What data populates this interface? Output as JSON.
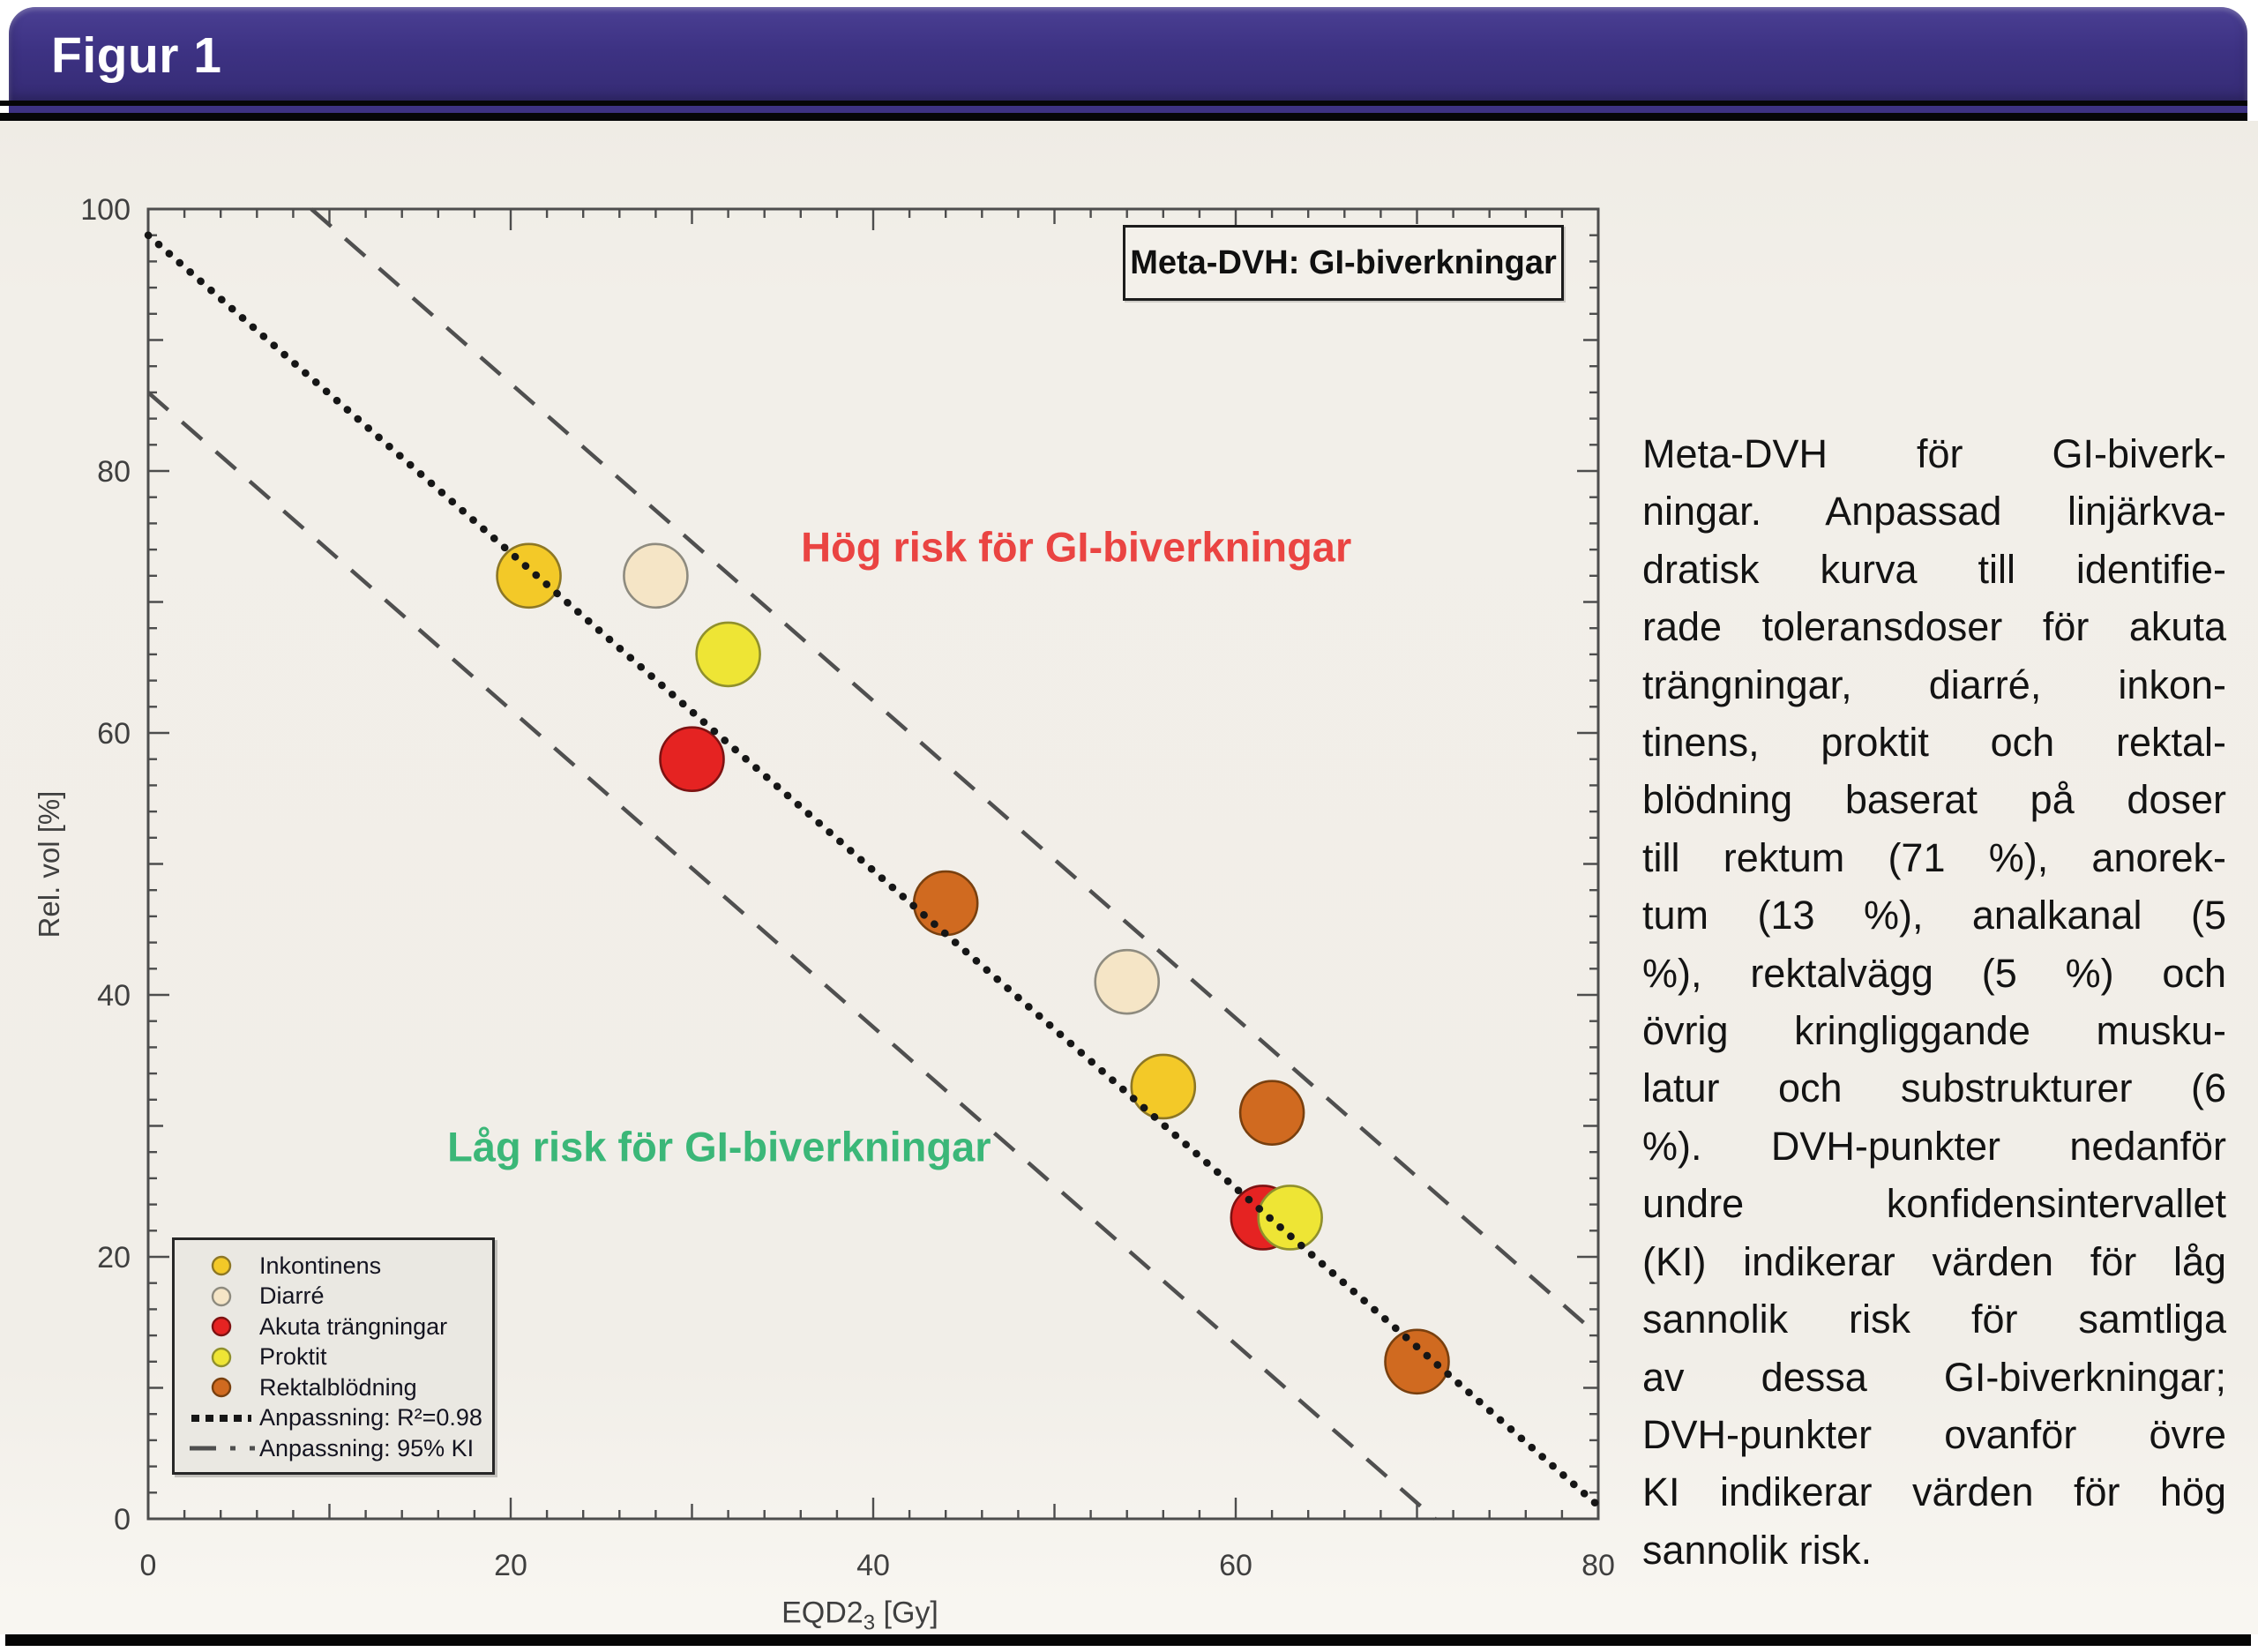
{
  "header": {
    "title": "Figur 1"
  },
  "chart": {
    "y_axis_label": "Rel. vol [%]",
    "x_axis_label": {
      "main": "EQD2",
      "sub": "3",
      "unit": " [Gy]"
    },
    "legend": {
      "items": [
        {
          "label": "Inkontinens",
          "marker": "circle",
          "color": "#f3c928",
          "edge": "#8d7725"
        },
        {
          "label": "Diarré",
          "marker": "circle",
          "color": "#f5e5c6",
          "edge": "#8e8b7f"
        },
        {
          "label": "Akuta trängningar",
          "marker": "circle",
          "color": "#e52322",
          "edge": "#7e1212"
        },
        {
          "label": "Proktit",
          "marker": "circle",
          "color": "#eee535",
          "edge": "#90902c"
        },
        {
          "label": "Rektalblödning",
          "marker": "circle",
          "color": "#d06a20",
          "edge": "#79400f"
        },
        {
          "label": "Anpassning: R²=0.98",
          "marker": "dotted",
          "color": "#161616"
        },
        {
          "label": "Anpassning: 95% KI",
          "marker": "dashed",
          "color": "#4f4f4f"
        }
      ]
    }
  },
  "chart_data": {
    "type": "scatter",
    "title": "Meta-DVH: GI-biverkningar",
    "xlabel": "EQD2₃ [Gy]",
    "ylabel": "Rel. vol [%]",
    "xlim": [
      0,
      80
    ],
    "ylim": [
      0,
      100
    ],
    "x_major_ticks": [
      0,
      20,
      40,
      60,
      80
    ],
    "y_major_ticks": [
      0,
      20,
      40,
      60,
      80,
      100
    ],
    "minor_tick_step": 2,
    "grid": false,
    "legend_position": "lower-left",
    "series": [
      {
        "name": "Inkontinens",
        "color": "#f3c928",
        "edge": "#8d7725",
        "points": [
          [
            21,
            72
          ],
          [
            56,
            33
          ]
        ]
      },
      {
        "name": "Diarré",
        "color": "#f5e5c6",
        "edge": "#8e8b7f",
        "points": [
          [
            28,
            72
          ],
          [
            54,
            41
          ]
        ]
      },
      {
        "name": "Akuta trängningar",
        "color": "#e52322",
        "edge": "#7e1212",
        "points": [
          [
            30,
            58
          ],
          [
            61.5,
            23
          ]
        ]
      },
      {
        "name": "Proktit",
        "color": "#eee535",
        "edge": "#90902c",
        "points": [
          [
            32,
            66
          ],
          [
            63,
            23
          ]
        ]
      },
      {
        "name": "Rektalblödning",
        "color": "#d06a20",
        "edge": "#79400f",
        "points": [
          [
            44,
            47
          ],
          [
            62,
            31
          ],
          [
            70,
            12
          ]
        ]
      }
    ],
    "fit_line": {
      "label": "Anpassning: R²=0.98",
      "style": "dotted",
      "x": [
        0,
        80
      ],
      "y": [
        98,
        1
      ]
    },
    "ci_label": "Anpassning: 95% KI",
    "ci_upper": {
      "style": "dashed",
      "x": [
        9,
        80
      ],
      "y": [
        100,
        14
      ]
    },
    "ci_lower": {
      "style": "dashed",
      "x": [
        0,
        71
      ],
      "y": [
        86,
        0
      ]
    },
    "annotations": [
      {
        "text": "Hög risk för GI-biverkningar",
        "color": "#ea4442",
        "x": 51.2,
        "y": 74.2
      },
      {
        "text": "Låg risk för GI-biverkningar",
        "color": "#3bb778",
        "x": 31.5,
        "y": 28.4
      }
    ]
  },
  "caption": {
    "lines": [
      "Meta-DVH för GI-biverk-",
      "ningar. Anpassad linjärkva-",
      "dratisk kurva till identifie-",
      "rade toleransdoser för akuta",
      "trängningar, diarré, inkon-",
      "tinens, proktit och rektal-",
      "blödning baserat på doser",
      "till rektum (71 %), anorek-",
      "tum (13 %), analkanal (5",
      "%), rektalvägg (5 %) och",
      "övrig kringliggande musku-",
      "latur och substrukturer (6",
      "%). DVH-punkter nedanför",
      "undre konfidensintervallet",
      "(KI) indikerar värden för låg",
      "sannolik risk för samtliga",
      "av dessa GI-biverkningar;",
      "DVH-punkter ovanför övre",
      "KI indikerar värden för hög",
      "sannolik risk."
    ]
  }
}
